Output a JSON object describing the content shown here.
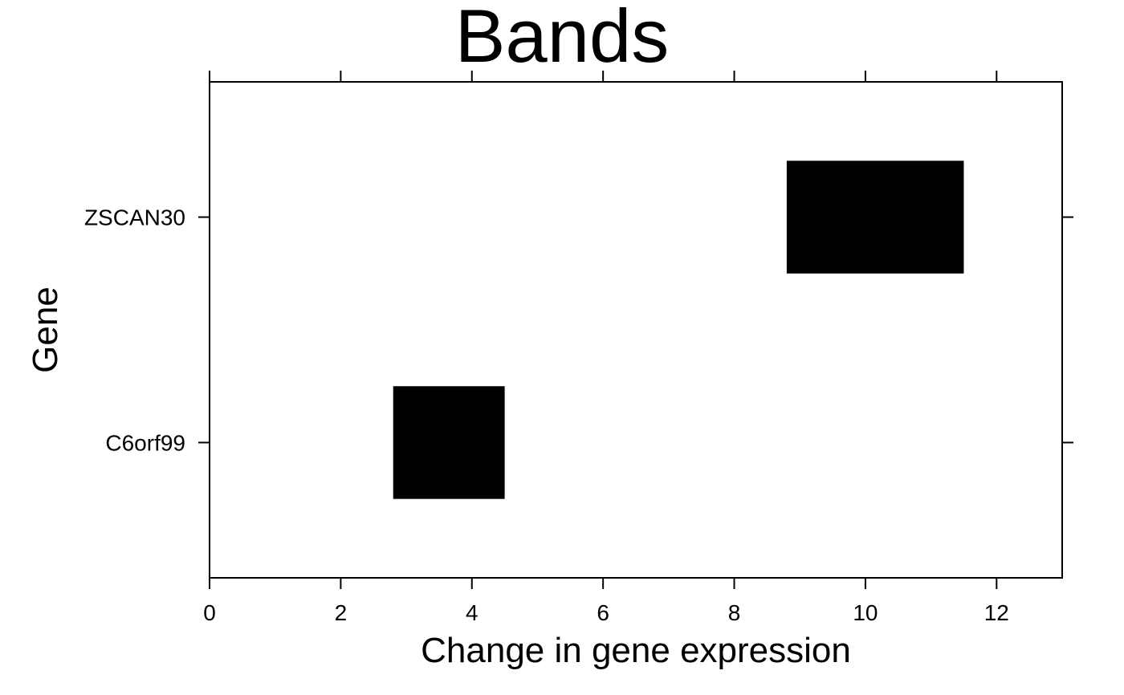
{
  "chart_data": {
    "type": "bar",
    "title": "Bands",
    "xlabel": "Change in gene expression",
    "ylabel": "Gene",
    "xlim": [
      0,
      13
    ],
    "xticks": [
      0,
      2,
      4,
      6,
      8,
      10,
      12
    ],
    "categories": [
      "C6orf99",
      "ZSCAN30"
    ],
    "bands": [
      {
        "category": "C6orf99",
        "start": 2.8,
        "end": 4.5
      },
      {
        "category": "ZSCAN30",
        "start": 8.8,
        "end": 11.5
      }
    ],
    "grid": false,
    "colors": {
      "band": "#000000",
      "axis": "#000000",
      "background": "#ffffff"
    }
  }
}
